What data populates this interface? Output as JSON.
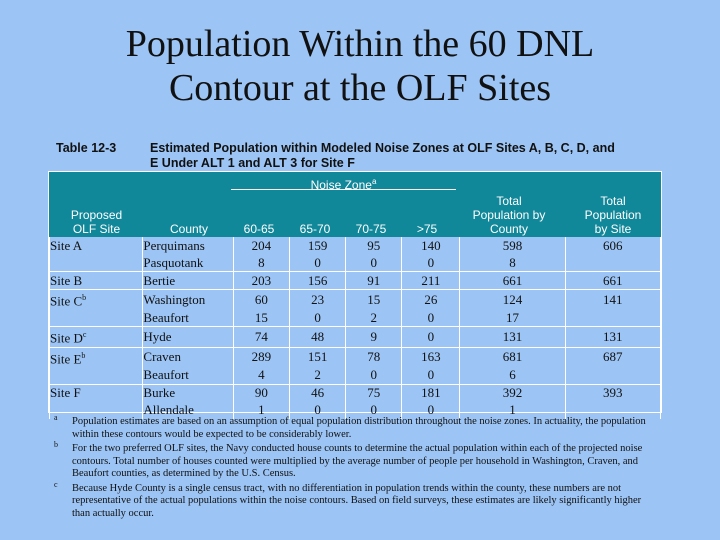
{
  "title": [
    "Population Within the 60 DNL",
    "Contour at the OLF Sites"
  ],
  "table_number": "Table 12-3",
  "table_caption": "Estimated Population within Modeled Noise Zones at OLF Sites A, B, C, D, and E Under ALT 1 and ALT 3 for Site F",
  "headers": {
    "noise_zone": "Noise Zone",
    "noise_zone_note": "a",
    "proposed_olf_site": [
      "Proposed",
      "OLF Site"
    ],
    "county": "County",
    "z1": "60-65",
    "z2": "65-70",
    "z3": "70-75",
    "z4": ">75",
    "total_by_county": [
      "Total",
      "Population by",
      "County"
    ],
    "total_by_site": [
      "Total",
      "Population",
      "by Site"
    ]
  },
  "rows": [
    {
      "site": "Site A",
      "note": "",
      "county": "Perquimans",
      "z1": "204",
      "z2": "159",
      "z3": "95",
      "z4": "140",
      "county_total": "598",
      "site_total": "606"
    },
    {
      "site": "",
      "note": "",
      "county": "Pasquotank",
      "z1": "8",
      "z2": "0",
      "z3": "0",
      "z4": "0",
      "county_total": "8",
      "site_total": ""
    },
    {
      "site": "Site B",
      "note": "",
      "county": "Bertie",
      "z1": "203",
      "z2": "156",
      "z3": "91",
      "z4": "211",
      "county_total": "661",
      "site_total": "661"
    },
    {
      "site": "Site C",
      "note": "b",
      "county": "Washington",
      "z1": "60",
      "z2": "23",
      "z3": "15",
      "z4": "26",
      "county_total": "124",
      "site_total": "141"
    },
    {
      "site": "",
      "note": "",
      "county": "Beaufort",
      "z1": "15",
      "z2": "0",
      "z3": "2",
      "z4": "0",
      "county_total": "17",
      "site_total": ""
    },
    {
      "site": "Site D",
      "note": "c",
      "county": "Hyde",
      "z1": "74",
      "z2": "48",
      "z3": "9",
      "z4": "0",
      "county_total": "131",
      "site_total": "131"
    },
    {
      "site": "Site E",
      "note": "b",
      "county": "Craven",
      "z1": "289",
      "z2": "151",
      "z3": "78",
      "z4": "163",
      "county_total": "681",
      "site_total": "687"
    },
    {
      "site": "",
      "note": "",
      "county": "Beaufort",
      "z1": "4",
      "z2": "2",
      "z3": "0",
      "z4": "0",
      "county_total": "6",
      "site_total": ""
    },
    {
      "site": "Site F",
      "note": "",
      "county": "Burke",
      "z1": "90",
      "z2": "46",
      "z3": "75",
      "z4": "181",
      "county_total": "392",
      "site_total": "393"
    },
    {
      "site": "",
      "note": "",
      "county": "Allendale",
      "z1": "1",
      "z2": "0",
      "z3": "0",
      "z4": "0",
      "county_total": "1",
      "site_total": ""
    }
  ],
  "notes": [
    {
      "mark": "a",
      "text": "Population estimates are based on an assumption of equal population distribution throughout the noise zones. In actuality, the population within these contours would be expected to be considerably lower."
    },
    {
      "mark": "b",
      "text": "For the two preferred OLF sites, the Navy conducted house counts to determine the actual population within each of the projected noise contours. Total number of houses counted were multiplied by the average number of people per household in Washington, Craven, and Beaufort counties, as determined by the U.S. Census."
    },
    {
      "mark": "c",
      "text": "Because Hyde County is a single census tract, with no differentiation in population trends within the county, these numbers are not representative of the actual populations within the noise contours. Based on field surveys, these estimates are likely significantly higher than actually occur."
    }
  ]
}
